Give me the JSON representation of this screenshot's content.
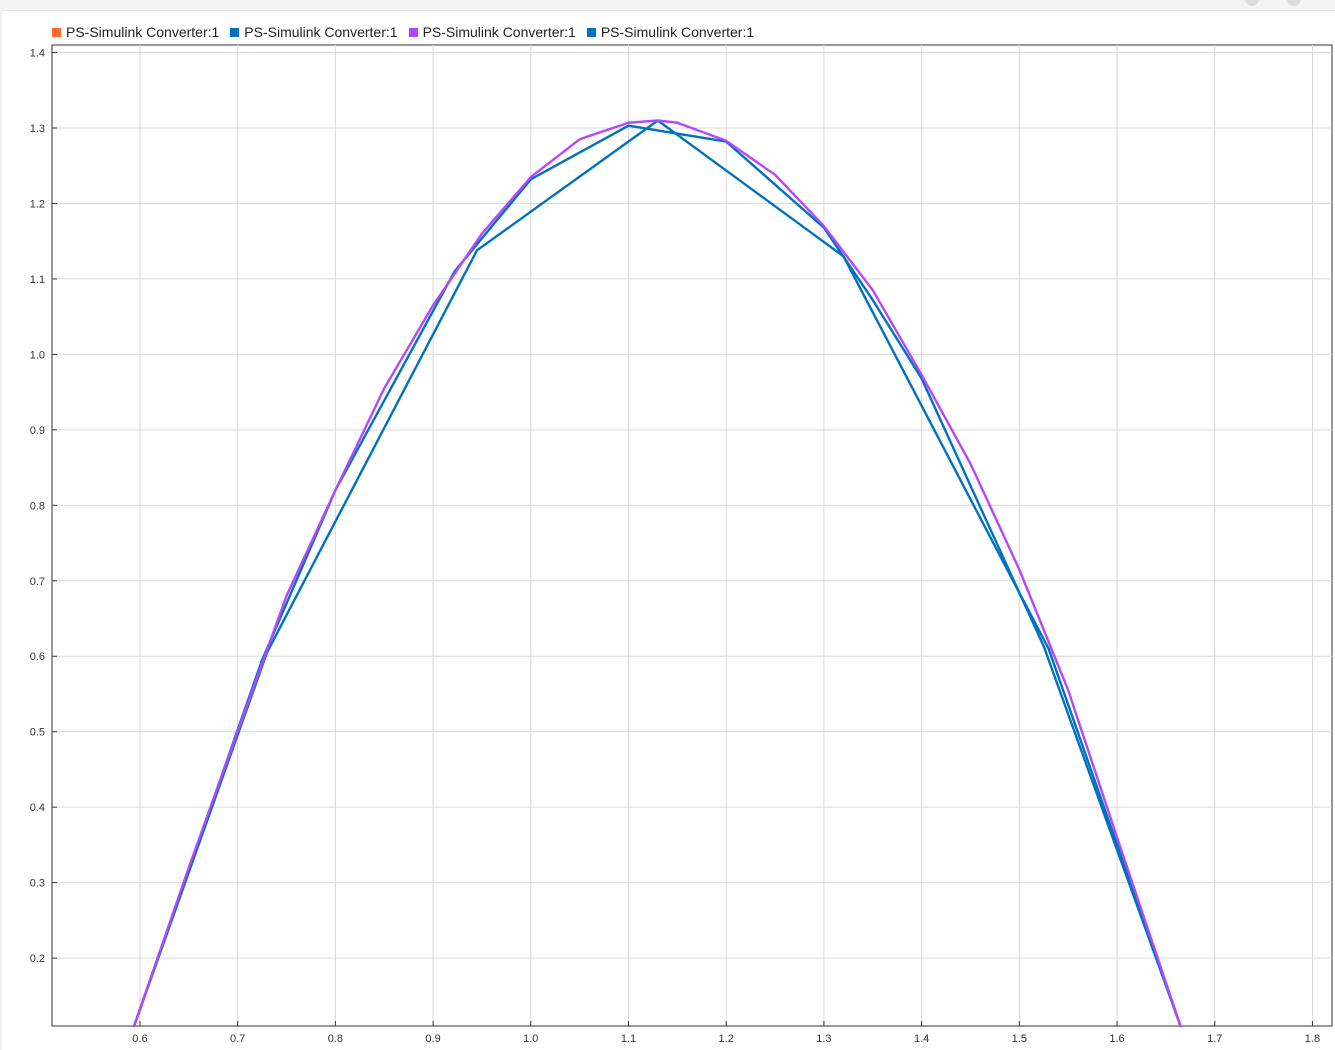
{
  "window": {
    "accent": "#0072bd"
  },
  "chart_data": {
    "type": "line",
    "title": "",
    "xlabel": "",
    "ylabel": "",
    "xlim": [
      0.51,
      1.82
    ],
    "ylim": [
      0.11,
      1.41
    ],
    "grid": true,
    "legend_placement": "top-left",
    "x_ticks": [
      "0.6",
      "0.7",
      "0.8",
      "0.9",
      "1.0",
      "1.1",
      "1.2",
      "1.3",
      "1.4",
      "1.5",
      "1.6",
      "1.7",
      "1.8"
    ],
    "y_ticks": [
      "0.2",
      "0.3",
      "0.4",
      "0.5",
      "0.6",
      "0.7",
      "0.8",
      "0.9",
      "1.0",
      "1.1",
      "1.2",
      "1.3",
      "1.4"
    ],
    "series": [
      {
        "name": "PS-Simulink Converter:1",
        "color": "#ff6929",
        "x": [],
        "y": []
      },
      {
        "name": "PS-Simulink Converter:1",
        "color": "#0072bd",
        "x": [
          0.594,
          0.725,
          0.8,
          0.922,
          1.0,
          1.1,
          1.2,
          1.3,
          1.35,
          1.4,
          1.525,
          1.665
        ],
        "y": [
          0.11,
          0.595,
          0.82,
          1.11,
          1.232,
          1.303,
          1.282,
          1.168,
          1.072,
          0.968,
          0.613,
          0.11
        ]
      },
      {
        "name": "PS-Simulink Converter:1",
        "color": "#b746ff",
        "x": [
          0.594,
          0.65,
          0.7,
          0.75,
          0.8,
          0.85,
          0.9,
          0.95,
          1.0,
          1.05,
          1.1,
          1.13,
          1.15,
          1.2,
          1.25,
          1.3,
          1.35,
          1.4,
          1.45,
          1.5,
          1.55,
          1.6,
          1.665
        ],
        "y": [
          0.11,
          0.32,
          0.5,
          0.68,
          0.82,
          0.955,
          1.065,
          1.16,
          1.235,
          1.285,
          1.307,
          1.31,
          1.307,
          1.283,
          1.238,
          1.17,
          1.085,
          0.973,
          0.855,
          0.715,
          0.555,
          0.36,
          0.11
        ]
      },
      {
        "name": "PS-Simulink Converter:1",
        "color": "#0072bd",
        "x": [
          0.594,
          0.73,
          0.945,
          1.13,
          1.32,
          1.53,
          1.665
        ],
        "y": [
          0.11,
          0.605,
          1.138,
          1.31,
          1.13,
          0.61,
          0.11
        ]
      }
    ]
  }
}
